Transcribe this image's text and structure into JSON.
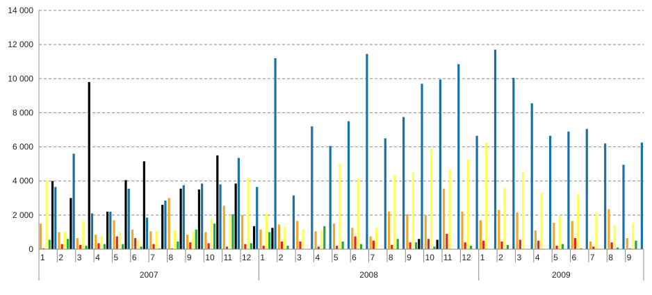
{
  "chart_data": {
    "type": "bar",
    "ylim": [
      0,
      14000
    ],
    "yticks": [
      0,
      2000,
      4000,
      6000,
      8000,
      10000,
      12000,
      14000
    ],
    "ytick_labels": [
      "0",
      "2 000",
      "4 000",
      "6 000",
      "8 000",
      "10 000",
      "12 000",
      "14 000"
    ],
    "grid": true,
    "years": [
      {
        "label": "2007",
        "months": [
          "1",
          "2",
          "3",
          "4",
          "5",
          "6",
          "7",
          "8",
          "9",
          "10",
          "11",
          "12"
        ]
      },
      {
        "label": "2008",
        "months": [
          "1",
          "2",
          "3",
          "4",
          "5",
          "6",
          "7",
          "8",
          "9",
          "10",
          "11",
          "12"
        ]
      },
      {
        "label": "2009",
        "months": [
          "1",
          "2",
          "3",
          "4",
          "5",
          "6",
          "7",
          "8",
          "9"
        ]
      }
    ],
    "series": [
      {
        "color": "#F5A623",
        "values": [
          1500,
          1000,
          650,
          850,
          1700,
          1150,
          1050,
          3000,
          850,
          1000,
          2550,
          2000,
          1150,
          1450,
          1650,
          1050,
          1500,
          1250,
          750,
          2200,
          2050,
          2000,
          3550,
          2200,
          1700,
          2300,
          2150,
          1100,
          1550,
          1650,
          450,
          2350,
          650
        ]
      },
      {
        "color": "#E8231F",
        "values": [
          50,
          300,
          250,
          350,
          750,
          650,
          300,
          50,
          400,
          350,
          150,
          300,
          200,
          450,
          450,
          150,
          200,
          750,
          500,
          250,
          400,
          600,
          900,
          400,
          500,
          450,
          550,
          500,
          200,
          650,
          150,
          400,
          50
        ]
      },
      {
        "color": "#FFFF4D",
        "values": [
          4050,
          1000,
          1650,
          800,
          1000,
          550,
          1050,
          1100,
          1050,
          1800,
          1950,
          4200,
          2100,
          1300,
          1150,
          1100,
          5000,
          4150,
          1250,
          4350,
          4500,
          5900,
          4650,
          5250,
          6250,
          3600,
          4550,
          3300,
          1950,
          3250,
          2150,
          1400,
          1550
        ]
      },
      {
        "color": "#1EA84B",
        "values": [
          550,
          600,
          200,
          300,
          300,
          150,
          50,
          450,
          1150,
          1500,
          2050,
          350,
          1000,
          200,
          0,
          1350,
          450,
          300,
          0,
          600,
          400,
          150,
          0,
          200,
          0,
          250,
          0,
          0,
          300,
          50,
          0,
          100,
          500
        ]
      },
      {
        "color": "#000000",
        "values": [
          4000,
          3000,
          9800,
          2200,
          4050,
          5150,
          2600,
          3550,
          3500,
          5500,
          3850,
          1350,
          1250,
          0,
          0,
          0,
          0,
          0,
          0,
          0,
          600,
          550,
          0,
          0,
          0,
          0,
          0,
          0,
          0,
          0,
          0,
          0,
          0
        ]
      },
      {
        "color": "#1772A8",
        "values": [
          3650,
          5600,
          2100,
          2200,
          3550,
          1850,
          2850,
          3750,
          3850,
          3800,
          5350,
          3650,
          11200,
          3150,
          7200,
          6050,
          7500,
          11450,
          6500,
          7750,
          9700,
          9950,
          10850,
          6650,
          11700,
          10050,
          8550,
          6650,
          6900,
          7050,
          6200,
          4950,
          6250
        ]
      }
    ]
  }
}
